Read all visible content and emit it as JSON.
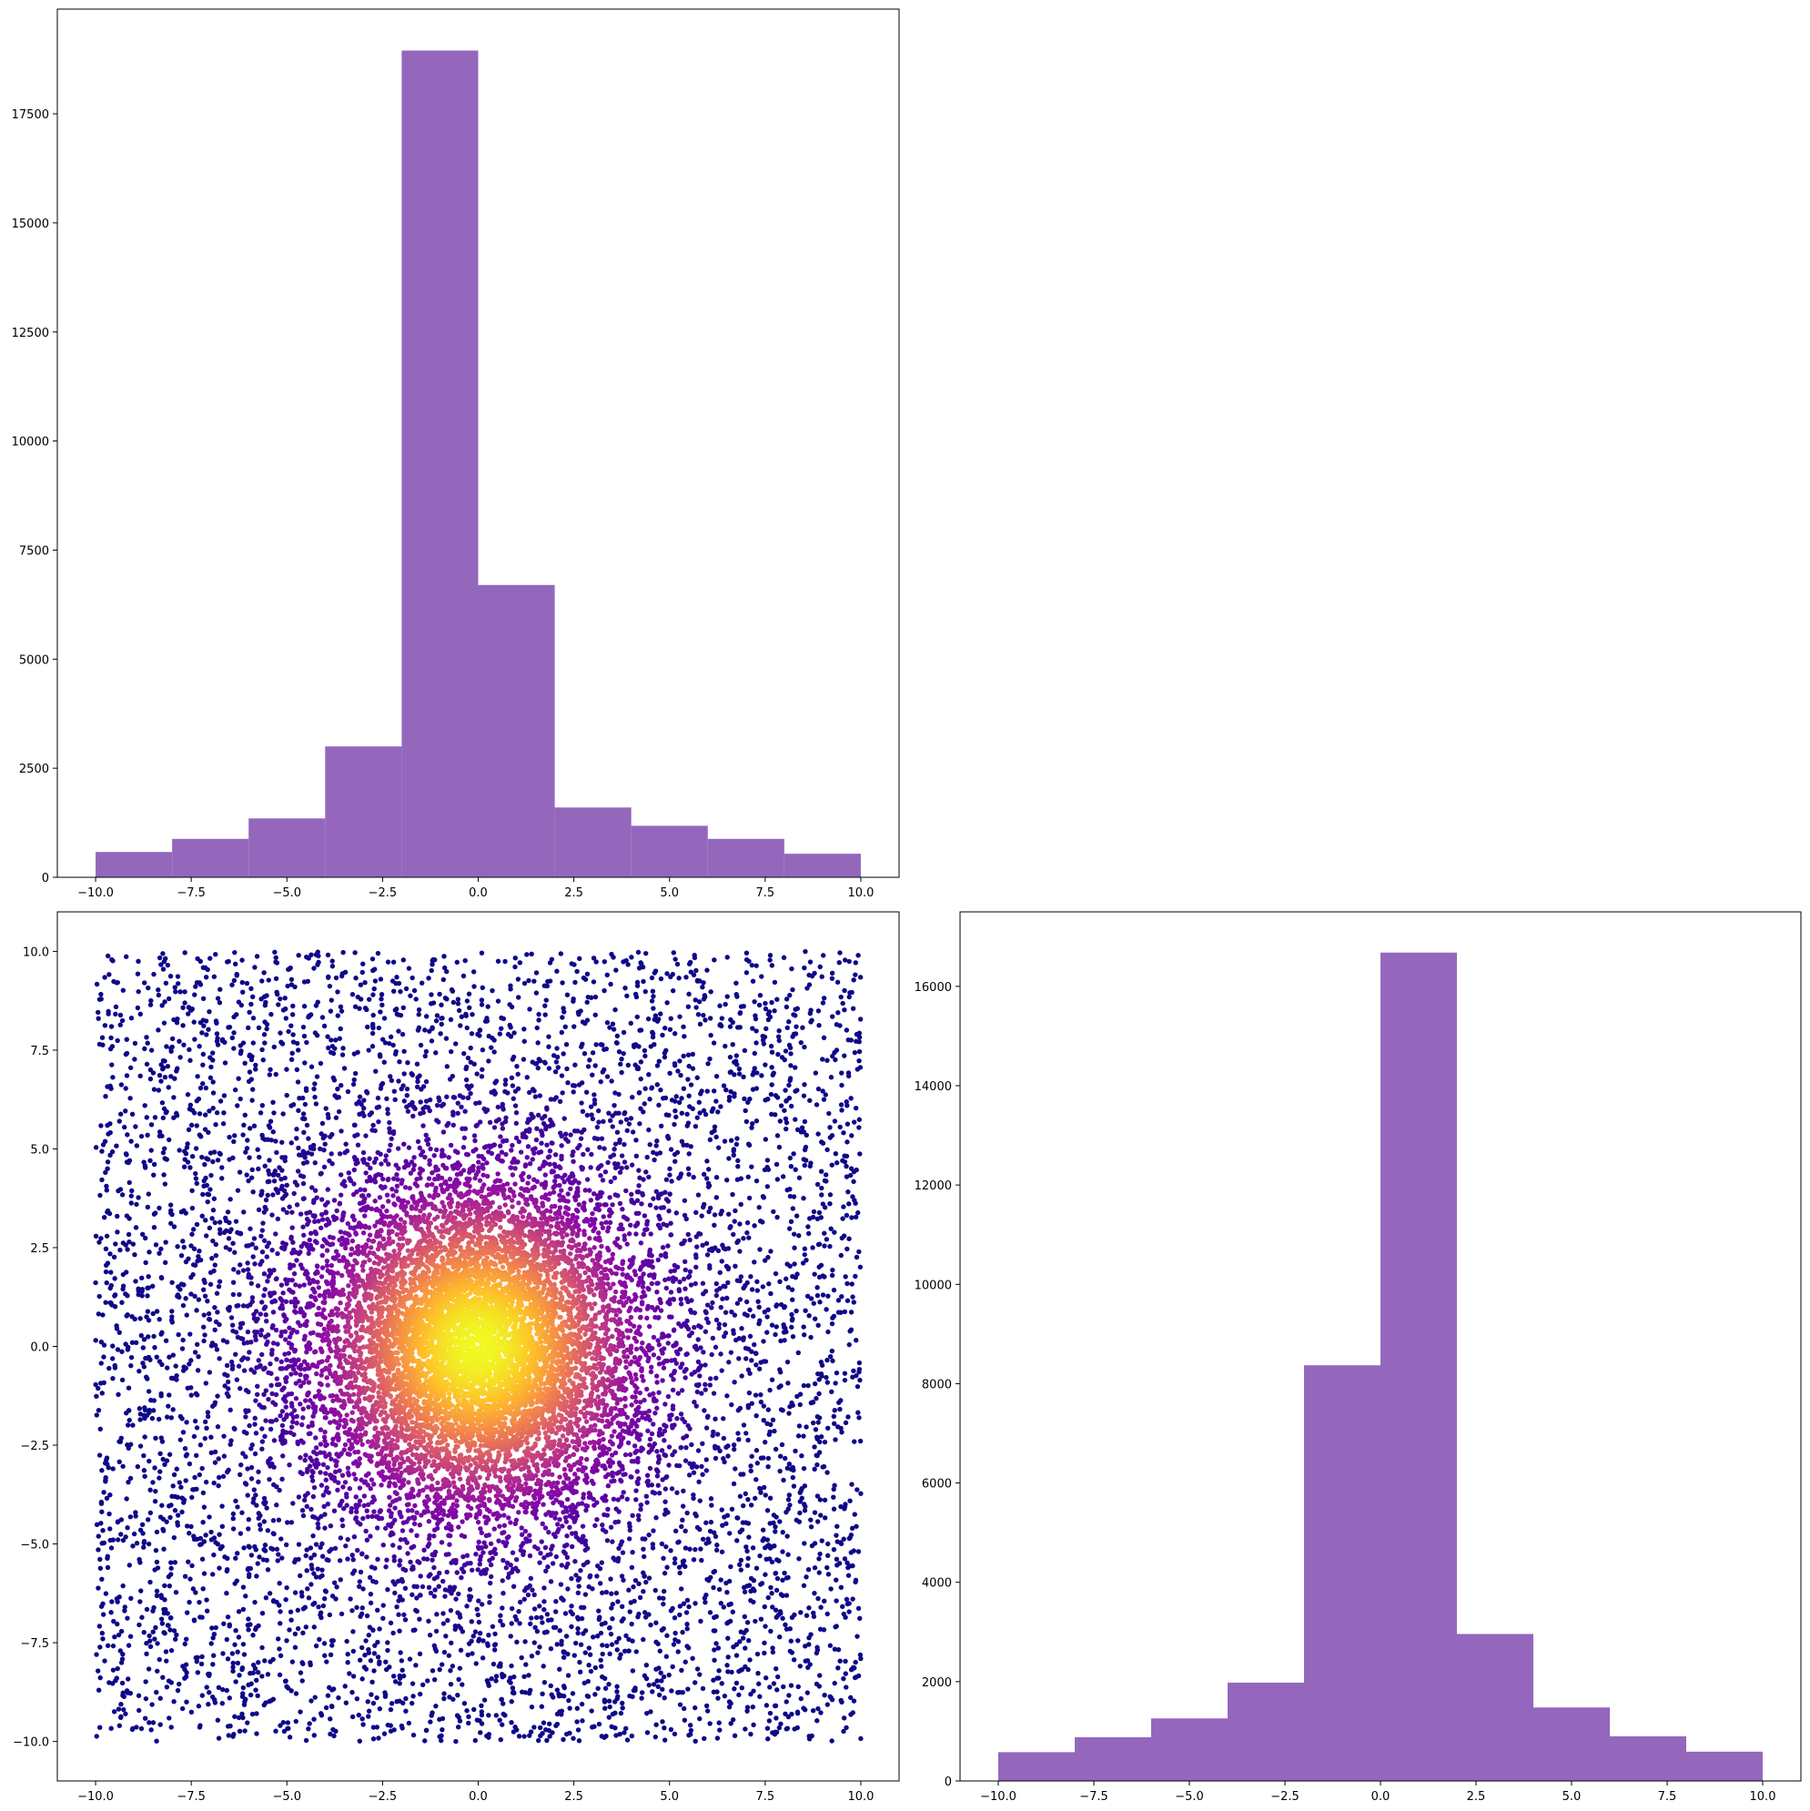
{
  "chart_data": [
    {
      "type": "bar",
      "panel": "top-left",
      "bin_edges": [
        -10,
        -8,
        -6,
        -4,
        -2,
        0,
        2,
        4,
        6,
        8,
        10
      ],
      "values": [
        580,
        880,
        1350,
        3000,
        18950,
        6700,
        1600,
        1180,
        880,
        540
      ],
      "color": "#9467bd",
      "xlim": [
        -11,
        11
      ],
      "ylim": [
        0,
        19900
      ],
      "xticks": [
        -10,
        -7.5,
        -5,
        -2.5,
        0,
        2.5,
        5,
        7.5,
        10
      ],
      "xtick_labels": [
        "−10.0",
        "−7.5",
        "−5.0",
        "−2.5",
        "0.0",
        "2.5",
        "5.0",
        "7.5",
        "10.0"
      ],
      "yticks": [
        0,
        2500,
        5000,
        7500,
        10000,
        12500,
        15000,
        17500
      ],
      "ytick_labels": [
        "0",
        "2500",
        "5000",
        "7500",
        "10000",
        "12500",
        "15000",
        "17500"
      ]
    },
    {
      "type": "scatter",
      "panel": "bottom-left",
      "colormap": "plasma",
      "color_stops": [
        "#0d0887",
        "#5302a3",
        "#8b0aa5",
        "#b83289",
        "#db5c68",
        "#f48849",
        "#febd2a",
        "#f0f921"
      ],
      "density": {
        "n_uniform": 6000,
        "n_gaussian": 8000,
        "gaussian_sigma": 2.2,
        "range": [
          -10,
          10
        ],
        "center": [
          0,
          0
        ]
      },
      "xlim": [
        -11,
        11
      ],
      "ylim": [
        -11,
        11
      ],
      "xticks": [
        -10,
        -7.5,
        -5,
        -2.5,
        0,
        2.5,
        5,
        7.5,
        10
      ],
      "xtick_labels": [
        "−10.0",
        "−7.5",
        "−5.0",
        "−2.5",
        "0.0",
        "2.5",
        "5.0",
        "7.5",
        "10.0"
      ],
      "yticks": [
        -10,
        -7.5,
        -5,
        -2.5,
        0,
        2.5,
        5,
        7.5,
        10
      ],
      "ytick_labels": [
        "−10.0",
        "−7.5",
        "−5.0",
        "−2.5",
        "0.0",
        "2.5",
        "5.0",
        "7.5",
        "10.0"
      ]
    },
    {
      "type": "bar",
      "panel": "bottom-right",
      "bin_edges": [
        -10,
        -8,
        -6,
        -4,
        -2,
        0,
        2,
        4,
        6,
        8,
        10
      ],
      "values": [
        580,
        880,
        1260,
        1980,
        8370,
        16680,
        2960,
        1480,
        900,
        590
      ],
      "color": "#9467bd",
      "xlim": [
        -11,
        11
      ],
      "ylim": [
        0,
        17500
      ],
      "xticks": [
        -10,
        -7.5,
        -5,
        -2.5,
        0,
        2.5,
        5,
        7.5,
        10
      ],
      "xtick_labels": [
        "−10.0",
        "−7.5",
        "−5.0",
        "−2.5",
        "0.0",
        "2.5",
        "5.0",
        "7.5",
        "10.0"
      ],
      "yticks": [
        0,
        2000,
        4000,
        6000,
        8000,
        10000,
        12000,
        14000,
        16000
      ],
      "ytick_labels": [
        "0",
        "2000",
        "4000",
        "6000",
        "8000",
        "10000",
        "12000",
        "14000",
        "16000"
      ]
    }
  ]
}
